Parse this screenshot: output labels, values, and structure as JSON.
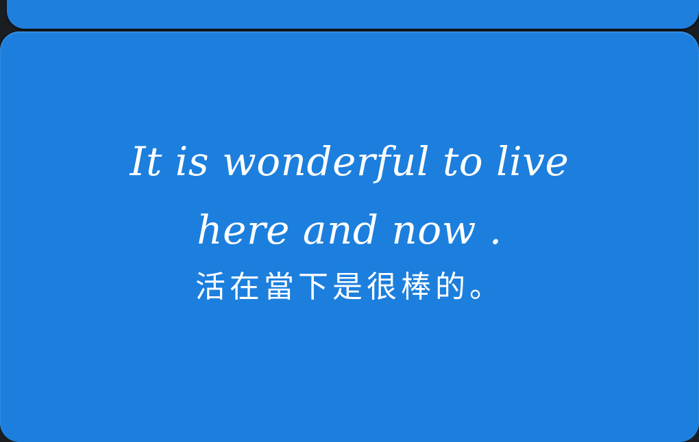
{
  "card": {
    "background_color": "#1c7fdd",
    "text_color": "#ffffff",
    "line_en_1": "It is wonderful to live",
    "line_en_2": "here and now .",
    "line_zh": "活在當下是很棒的。"
  }
}
